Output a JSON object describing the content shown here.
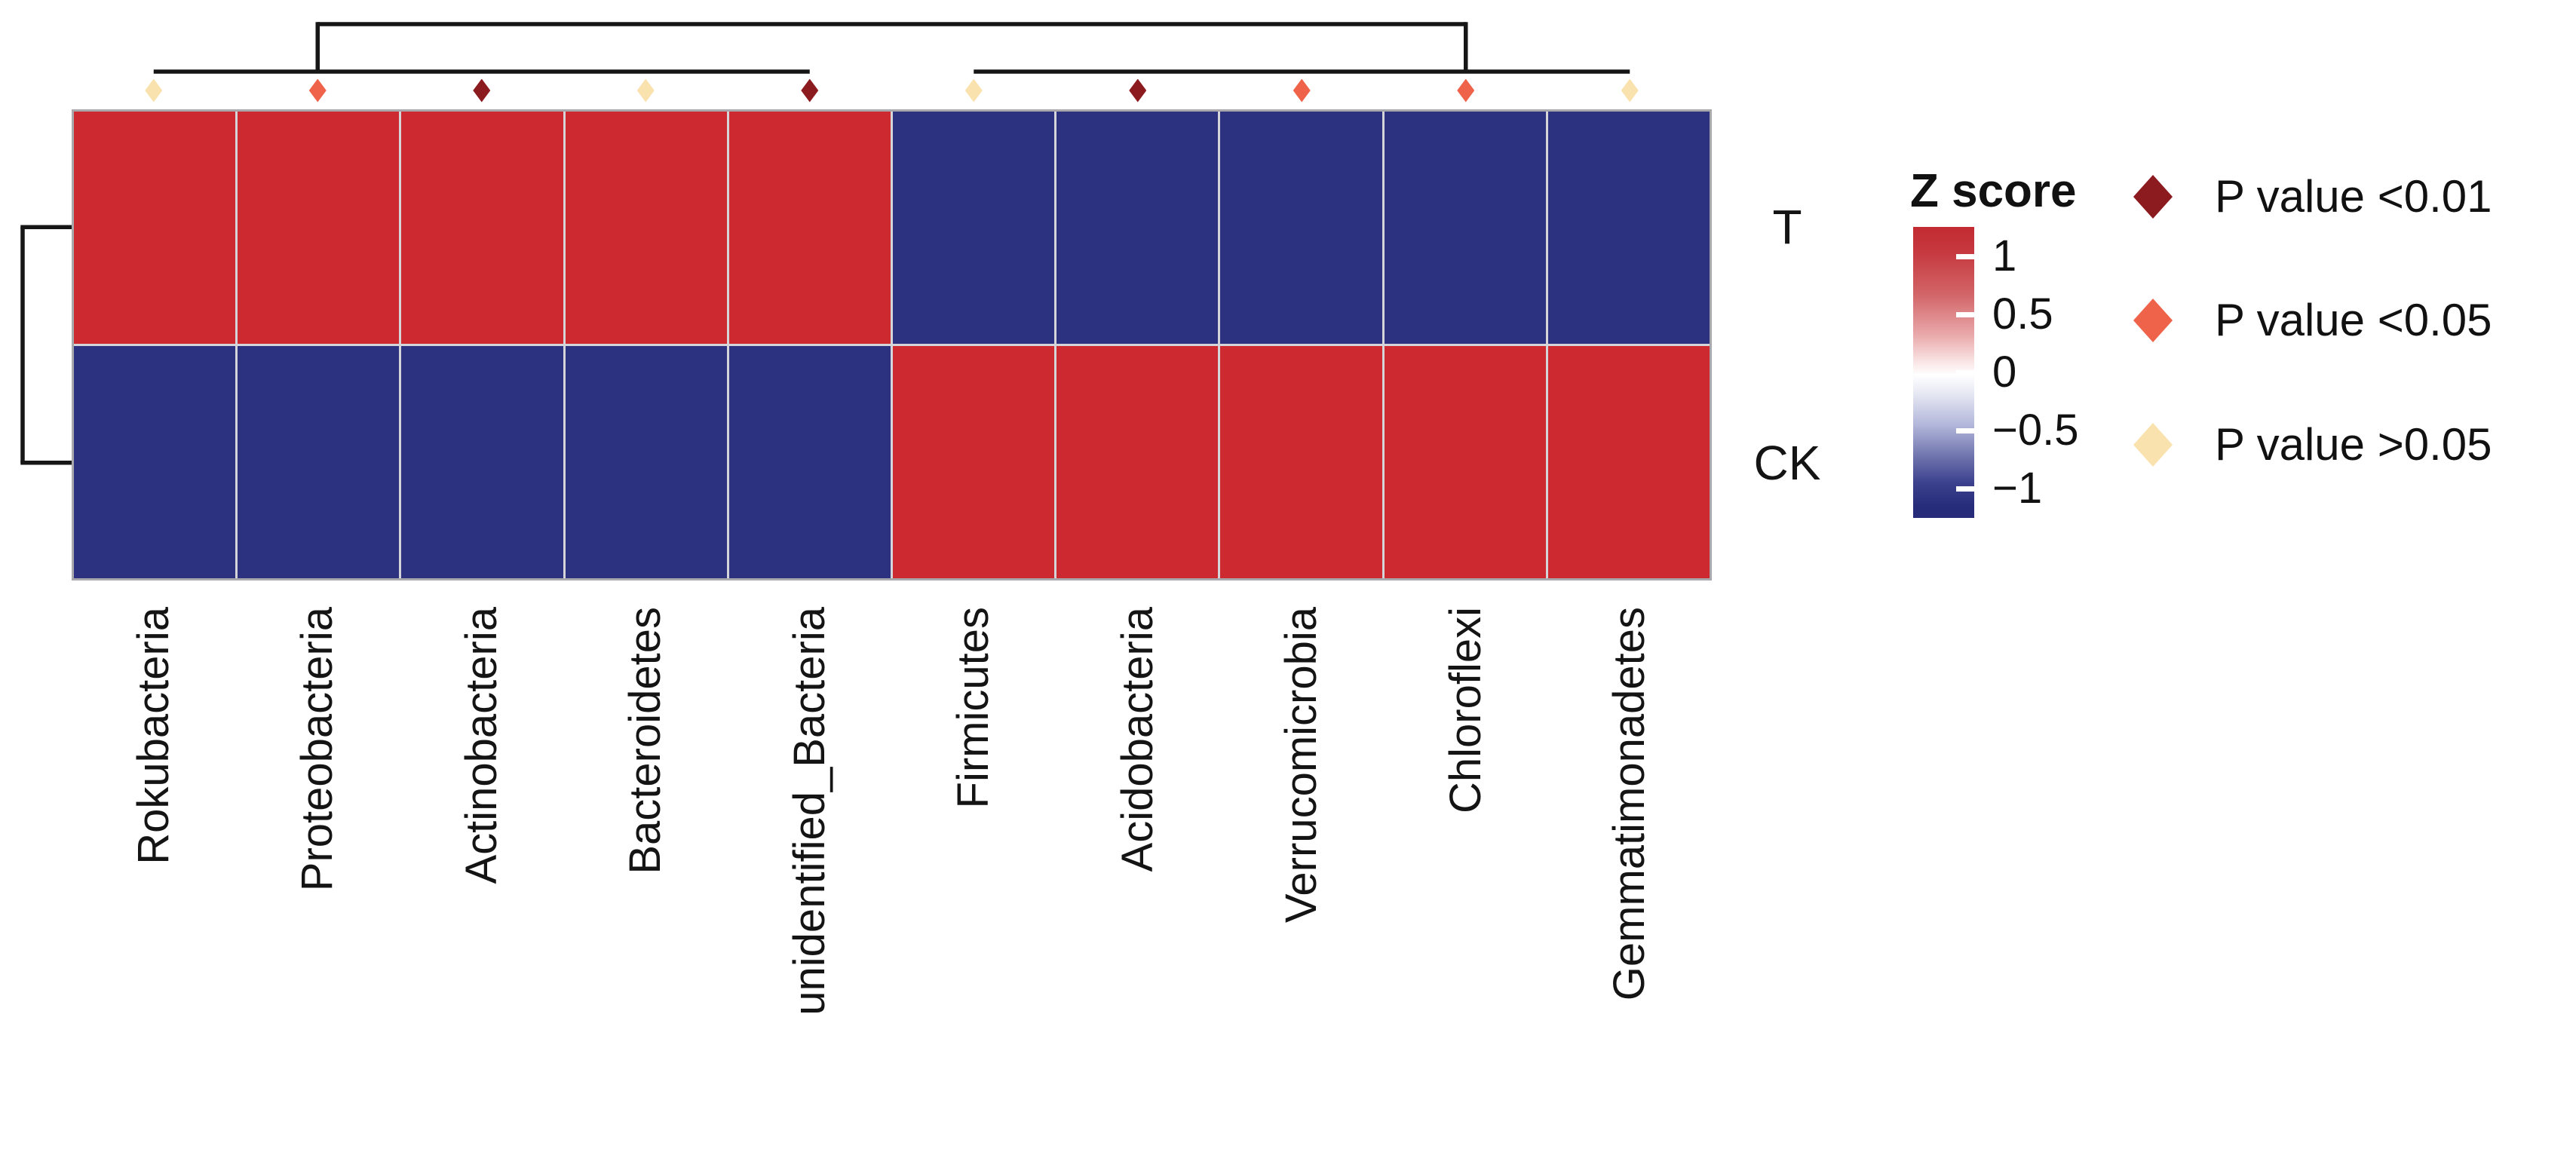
{
  "figure": {
    "background": "#ffffff"
  },
  "heatmap": {
    "rows": [
      "T",
      "CK"
    ],
    "columns": [
      "Rokubacteria",
      "Proteobacteria",
      "Actinobacteria",
      "Bacteroidetes",
      "unidentified_Bacteria",
      "Firmicutes",
      "Acidobacteria",
      "Verrucomicrobia",
      "Chloroflexi",
      "Gemmatimonadetes"
    ],
    "cell_colors": {
      "positive": "#cc2a30",
      "negative": "#2c3180"
    },
    "grid_color": "#d4d4d9"
  },
  "significance": {
    "per_column": [
      "ns",
      "p05",
      "p01",
      "ns",
      "p01",
      "ns",
      "p01",
      "p05",
      "p05",
      "ns"
    ],
    "colors": {
      "p01": "#8c1b1f",
      "p05": "#ef634a",
      "ns": "#fae2ae"
    }
  },
  "zscore_legend": {
    "title": "Z score",
    "ticks": [
      "1",
      "0.5",
      "0",
      "−0.5",
      "−1"
    ]
  },
  "pvalue_legend": {
    "items": [
      {
        "label": "P value <0.01",
        "code": "p01",
        "color": "#8c1b1f"
      },
      {
        "label": "P value <0.05",
        "code": "p05",
        "color": "#ef634a"
      },
      {
        "label": "P value >0.05",
        "code": "ns",
        "color": "#fae2ae"
      }
    ]
  },
  "chart_data": {
    "type": "heatmap",
    "title": "",
    "rows": [
      "T",
      "CK"
    ],
    "columns": [
      "Rokubacteria",
      "Proteobacteria",
      "Actinobacteria",
      "Bacteroidetes",
      "unidentified_Bacteria",
      "Firmicutes",
      "Acidobacteria",
      "Verrucomicrobia",
      "Chloroflexi",
      "Gemmatimonadetes"
    ],
    "values": [
      [
        1,
        1,
        1,
        1,
        1,
        -1,
        -1,
        -1,
        -1,
        -1
      ],
      [
        -1,
        -1,
        -1,
        -1,
        -1,
        1,
        1,
        1,
        1,
        1
      ]
    ],
    "value_name": "Z score",
    "zlim": [
      -1,
      1
    ],
    "colorbar_ticks": [
      1,
      0.5,
      0,
      -0.5,
      -1
    ],
    "column_significance": [
      "P value >0.05",
      "P value <0.05",
      "P value <0.01",
      "P value >0.05",
      "P value <0.01",
      "P value >0.05",
      "P value <0.01",
      "P value <0.05",
      "P value <0.05",
      "P value >0.05"
    ],
    "column_clusters": [
      [
        "Rokubacteria",
        "Proteobacteria",
        "Actinobacteria",
        "Bacteroidetes",
        "unidentified_Bacteria"
      ],
      [
        "Firmicutes",
        "Acidobacteria",
        "Verrucomicrobia",
        "Chloroflexi",
        "Gemmatimonadetes"
      ]
    ],
    "row_clusters": [
      [
        "T"
      ],
      [
        "CK"
      ]
    ],
    "legend_position": "right",
    "colors": {
      "high": "#cc2a30",
      "mid": "#ffffff",
      "low": "#2c3180"
    },
    "grid": true
  }
}
